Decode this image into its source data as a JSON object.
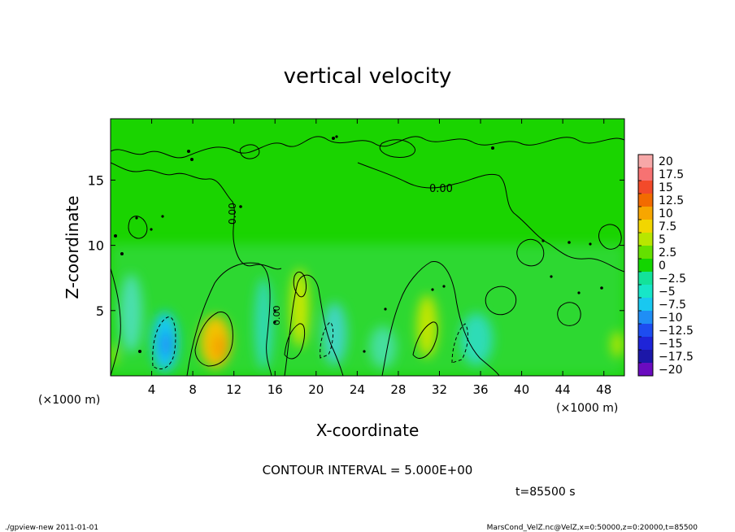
{
  "chart_data": {
    "type": "heatmap",
    "title": "vertical velocity",
    "xlabel": "X-coordinate",
    "ylabel": "Z-coordinate",
    "x_unit_left": "(×1000 m)",
    "x_unit_right": "(×1000 m)",
    "xlim": [
      0,
      50
    ],
    "ylim": [
      0,
      19.7
    ],
    "x_ticks": [
      "4",
      "8",
      "12",
      "16",
      "20",
      "24",
      "28",
      "32",
      "36",
      "40",
      "44",
      "48"
    ],
    "x_tick_values": [
      4,
      8,
      12,
      16,
      20,
      24,
      28,
      32,
      36,
      40,
      44,
      48
    ],
    "y_ticks": [
      "5",
      "10",
      "15"
    ],
    "y_tick_values": [
      5,
      10,
      15
    ],
    "colorbar": {
      "labels": [
        "20",
        "17.5",
        "15",
        "12.5",
        "10",
        "7.5",
        "5",
        "2.5",
        "0",
        "−2.5",
        "−5",
        "−7.5",
        "−10",
        "−12.5",
        "−15",
        "−17.5",
        "−20"
      ],
      "colors": [
        "#f7a8a8",
        "#f77272",
        "#f24a2a",
        "#f26b00",
        "#f7a600",
        "#f2d600",
        "#b8e600",
        "#64e000",
        "#13d500",
        "#13e29a",
        "#17e6c8",
        "#19c8f0",
        "#1f8ef5",
        "#1d4df0",
        "#1e24d8",
        "#1c17a8",
        "#6a0bbf"
      ]
    },
    "contour_labels": [
      "0.00",
      "0.00",
      "0.00"
    ],
    "blobs": [
      {
        "x": 10.2,
        "z": 2.6,
        "rx": 1.5,
        "rz": 2.0,
        "color": "#f2c400"
      },
      {
        "x": 10.6,
        "z": 2.2,
        "rx": 0.7,
        "rz": 1.0,
        "color": "#f5a000"
      },
      {
        "x": 18.4,
        "z": 5.2,
        "rx": 0.9,
        "rz": 3.0,
        "color": "#c9e800"
      },
      {
        "x": 30.8,
        "z": 3.8,
        "rx": 1.0,
        "rz": 2.4,
        "color": "#c2e600"
      },
      {
        "x": 5.3,
        "z": 2.6,
        "rx": 1.3,
        "rz": 2.3,
        "color": "#18c8f0"
      },
      {
        "x": 5.4,
        "z": 2.4,
        "rx": 0.5,
        "rz": 1.0,
        "color": "#1f86f5"
      },
      {
        "x": 2.0,
        "z": 4.8,
        "rx": 1.1,
        "rz": 3.0,
        "color": "#4bdfae"
      },
      {
        "x": 21.8,
        "z": 3.2,
        "rx": 1.2,
        "rz": 2.4,
        "color": "#3fd6c0"
      },
      {
        "x": 35.6,
        "z": 2.8,
        "rx": 1.6,
        "rz": 2.0,
        "color": "#2fdcb6"
      },
      {
        "x": 26.5,
        "z": 2.2,
        "rx": 1.3,
        "rz": 1.6,
        "color": "#44df9e"
      },
      {
        "x": 14.9,
        "z": 4.0,
        "rx": 0.9,
        "rz": 3.5,
        "color": "#30d9b0"
      },
      {
        "x": 49.3,
        "z": 2.4,
        "rx": 0.6,
        "rz": 1.0,
        "color": "#b5e600"
      },
      {
        "x": 0.3,
        "z": 1.6,
        "rx": 0.3,
        "rz": 0.8,
        "color": "#c0e600"
      }
    ],
    "contour_interval": "CONTOUR INTERVAL = 5.000E+00",
    "time_label": "t=85500 s"
  },
  "footer": {
    "left": "./gpview-new   2011-01-01",
    "right": "MarsCond_VelZ.nc@VelZ,x=0:50000,z=0:20000,t=85500"
  }
}
